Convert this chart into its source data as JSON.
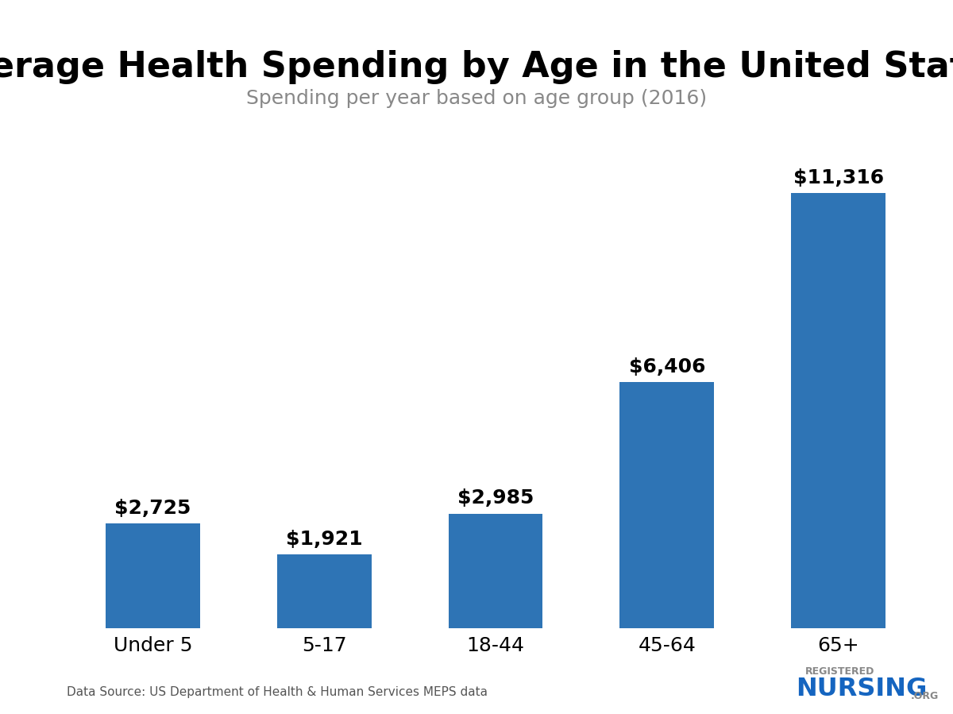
{
  "title": "Average Health Spending by Age in the United States",
  "subtitle": "Spending per year based on age group (2016)",
  "categories": [
    "Under 5",
    "5-17",
    "18-44",
    "45-64",
    "65+"
  ],
  "values": [
    2725,
    1921,
    2985,
    6406,
    11316
  ],
  "labels": [
    "$2,725",
    "$1,921",
    "$2,985",
    "$6,406",
    "$11,316"
  ],
  "bar_color": "#2E74B5",
  "background_color": "#FFFFFF",
  "title_fontsize": 32,
  "subtitle_fontsize": 18,
  "label_fontsize": 18,
  "tick_fontsize": 18,
  "source_text": "Data Source: US Department of Health & Human Services MEPS data",
  "source_fontsize": 11,
  "ylim": [
    0,
    13000
  ]
}
